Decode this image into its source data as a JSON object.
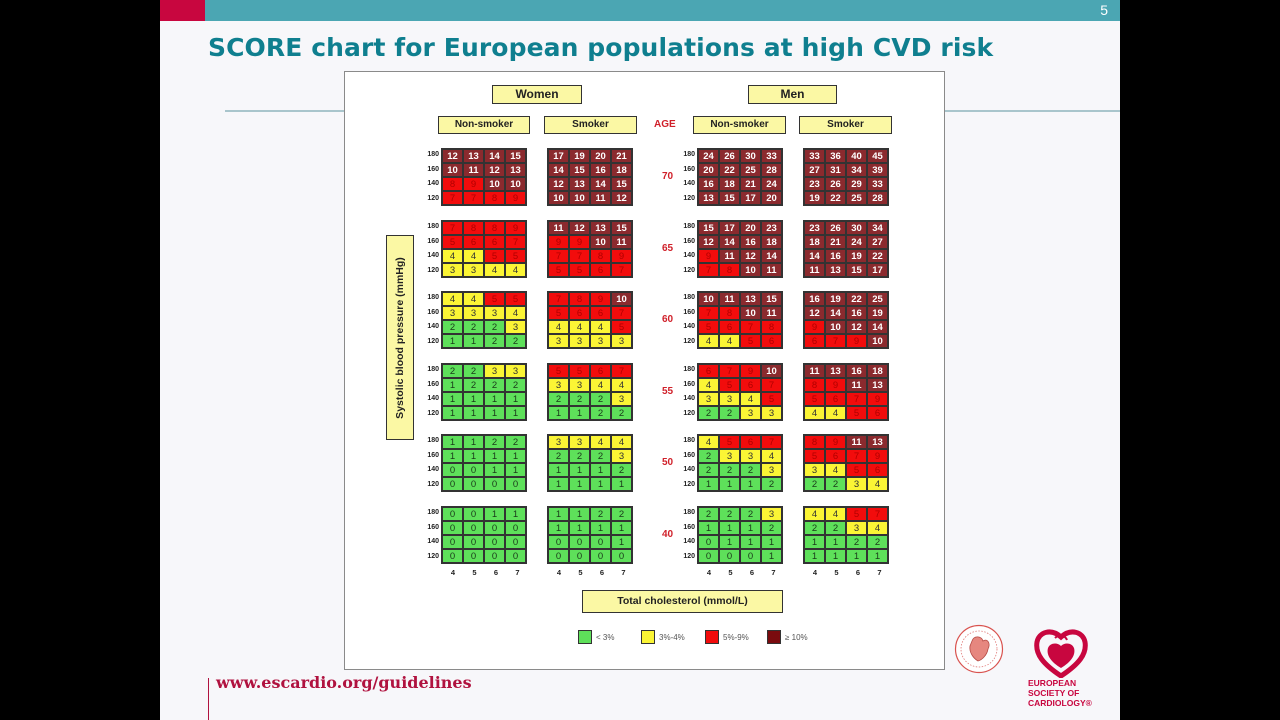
{
  "slide": {
    "page_number": "5",
    "title": "SCORE chart for European populations at high CVD risk",
    "footer_url": "www.escardio.org/guidelines",
    "logo_text": [
      "EUROPEAN",
      "SOCIETY OF",
      "CARDIOLOGY®"
    ]
  },
  "colors": {
    "green": "#5ee05a",
    "yellow": "#fbf535",
    "red": "#f20c0c",
    "dark": "#8b2a2e",
    "topbar": "#4ba6b3",
    "accent_red": "#c8063f",
    "title": "#0f7f8f"
  },
  "chart_data": {
    "type": "heatmap",
    "title": "SCORE chart for European populations at high CVD risk",
    "groups": [
      "Women",
      "Men"
    ],
    "smoking_labels": [
      "Non-smoker",
      "Smoker"
    ],
    "age_label": "AGE",
    "ages": [
      "70",
      "65",
      "60",
      "55",
      "50",
      "40"
    ],
    "ylabel": "Systolic blood pressure (mmHg)",
    "xlabel": "Total cholesterol (mmol/L)",
    "sbp_ticks": [
      "180",
      "160",
      "140",
      "120"
    ],
    "chol_ticks": [
      "4",
      "5",
      "6",
      "7"
    ],
    "legend": [
      {
        "label": "< 3%",
        "category": "green"
      },
      {
        "label": "3%-4%",
        "category": "yellow"
      },
      {
        "label": "5%-9%",
        "category": "red"
      },
      {
        "label": "≥ 10%",
        "category": "dark"
      }
    ],
    "panels": {
      "women_non_smoker": [
        [
          [
            12,
            13,
            14,
            15
          ],
          [
            10,
            11,
            12,
            13
          ],
          [
            8,
            9,
            10,
            10
          ],
          [
            7,
            7,
            8,
            9
          ]
        ],
        [
          [
            7,
            8,
            8,
            9
          ],
          [
            5,
            6,
            6,
            7
          ],
          [
            4,
            4,
            5,
            5
          ],
          [
            3,
            3,
            4,
            4
          ]
        ],
        [
          [
            4,
            4,
            5,
            5
          ],
          [
            3,
            3,
            3,
            4
          ],
          [
            2,
            2,
            2,
            3
          ],
          [
            1,
            1,
            2,
            2
          ]
        ],
        [
          [
            2,
            2,
            3,
            3
          ],
          [
            1,
            2,
            2,
            2
          ],
          [
            1,
            1,
            1,
            1
          ],
          [
            1,
            1,
            1,
            1
          ]
        ],
        [
          [
            1,
            1,
            2,
            2
          ],
          [
            1,
            1,
            1,
            1
          ],
          [
            0,
            0,
            1,
            1
          ],
          [
            0,
            0,
            0,
            0
          ]
        ],
        [
          [
            0,
            0,
            1,
            1
          ],
          [
            0,
            0,
            0,
            0
          ],
          [
            0,
            0,
            0,
            0
          ],
          [
            0,
            0,
            0,
            0
          ]
        ]
      ],
      "women_smoker": [
        [
          [
            17,
            19,
            20,
            21
          ],
          [
            14,
            15,
            16,
            18
          ],
          [
            12,
            13,
            14,
            15
          ],
          [
            10,
            10,
            11,
            12
          ]
        ],
        [
          [
            11,
            12,
            13,
            15
          ],
          [
            9,
            9,
            10,
            11
          ],
          [
            7,
            7,
            8,
            9
          ],
          [
            5,
            5,
            6,
            7
          ]
        ],
        [
          [
            7,
            8,
            9,
            10
          ],
          [
            5,
            6,
            6,
            7
          ],
          [
            4,
            4,
            4,
            5
          ],
          [
            3,
            3,
            3,
            3
          ]
        ],
        [
          [
            5,
            5,
            6,
            7
          ],
          [
            3,
            3,
            4,
            4
          ],
          [
            2,
            2,
            2,
            3
          ],
          [
            1,
            1,
            2,
            2
          ]
        ],
        [
          [
            3,
            3,
            4,
            4
          ],
          [
            2,
            2,
            2,
            3
          ],
          [
            1,
            1,
            1,
            2
          ],
          [
            1,
            1,
            1,
            1
          ]
        ],
        [
          [
            1,
            1,
            2,
            2
          ],
          [
            1,
            1,
            1,
            1
          ],
          [
            0,
            0,
            0,
            1
          ],
          [
            0,
            0,
            0,
            0
          ]
        ]
      ],
      "men_non_smoker": [
        [
          [
            24,
            26,
            30,
            33
          ],
          [
            20,
            22,
            25,
            28
          ],
          [
            16,
            18,
            21,
            24
          ],
          [
            13,
            15,
            17,
            20
          ]
        ],
        [
          [
            15,
            17,
            20,
            23
          ],
          [
            12,
            14,
            16,
            18
          ],
          [
            9,
            11,
            12,
            14
          ],
          [
            7,
            8,
            10,
            11
          ]
        ],
        [
          [
            10,
            11,
            13,
            15
          ],
          [
            7,
            8,
            10,
            11
          ],
          [
            5,
            6,
            7,
            8
          ],
          [
            4,
            4,
            5,
            6
          ]
        ],
        [
          [
            6,
            7,
            9,
            10
          ],
          [
            4,
            5,
            6,
            7
          ],
          [
            3,
            3,
            4,
            5
          ],
          [
            2,
            2,
            3,
            3
          ]
        ],
        [
          [
            4,
            5,
            6,
            7
          ],
          [
            2,
            3,
            3,
            4
          ],
          [
            2,
            2,
            2,
            3
          ],
          [
            1,
            1,
            1,
            2
          ]
        ],
        [
          [
            2,
            2,
            2,
            3
          ],
          [
            1,
            1,
            1,
            2
          ],
          [
            0,
            1,
            1,
            1
          ],
          [
            0,
            0,
            0,
            1
          ]
        ]
      ],
      "men_smoker": [
        [
          [
            33,
            36,
            40,
            45
          ],
          [
            27,
            31,
            34,
            39
          ],
          [
            23,
            26,
            29,
            33
          ],
          [
            19,
            22,
            25,
            28
          ]
        ],
        [
          [
            23,
            26,
            30,
            34
          ],
          [
            18,
            21,
            24,
            27
          ],
          [
            14,
            16,
            19,
            22
          ],
          [
            11,
            13,
            15,
            17
          ]
        ],
        [
          [
            16,
            19,
            22,
            25
          ],
          [
            12,
            14,
            16,
            19
          ],
          [
            9,
            10,
            12,
            14
          ],
          [
            6,
            7,
            9,
            10
          ]
        ],
        [
          [
            11,
            13,
            16,
            18
          ],
          [
            8,
            9,
            11,
            13
          ],
          [
            5,
            6,
            7,
            9
          ],
          [
            4,
            4,
            5,
            6
          ]
        ],
        [
          [
            8,
            9,
            11,
            13
          ],
          [
            5,
            6,
            7,
            9
          ],
          [
            3,
            4,
            5,
            6
          ],
          [
            2,
            2,
            3,
            4
          ]
        ],
        [
          [
            4,
            4,
            5,
            7
          ],
          [
            2,
            2,
            3,
            4
          ],
          [
            1,
            1,
            2,
            2
          ],
          [
            1,
            1,
            1,
            1
          ]
        ]
      ]
    }
  }
}
